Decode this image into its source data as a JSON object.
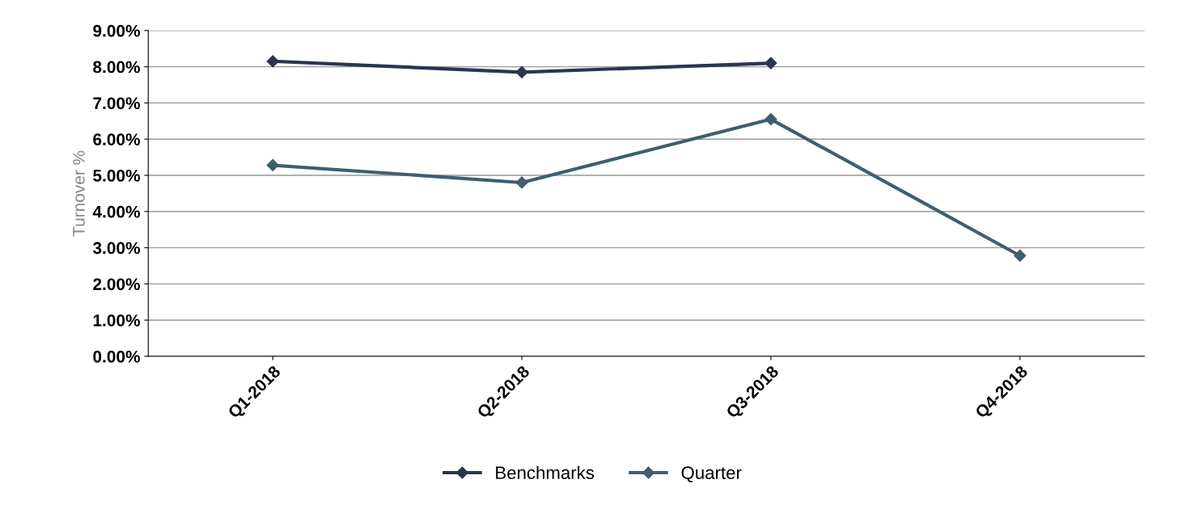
{
  "chart_data": {
    "type": "line",
    "ylabel": "Turnover %",
    "categories": [
      "Q1-2018",
      "Q2-2018",
      "Q3-2018",
      "Q4-2018"
    ],
    "series": [
      {
        "name": "Benchmarks",
        "color": "#2b3550",
        "values": [
          8.15,
          7.85,
          8.1,
          null
        ]
      },
      {
        "name": "Quarter",
        "color": "#3e5f6e",
        "values": [
          5.28,
          4.8,
          6.55,
          2.78
        ]
      }
    ],
    "ylim": [
      0,
      9
    ],
    "yticks": [
      {
        "value": 0,
        "label": "0.00%"
      },
      {
        "value": 1,
        "label": "1.00%"
      },
      {
        "value": 2,
        "label": "2.00%"
      },
      {
        "value": 3,
        "label": "3.00%"
      },
      {
        "value": 4,
        "label": "4.00%"
      },
      {
        "value": 5,
        "label": "5.00%"
      },
      {
        "value": 6,
        "label": "6.00%"
      },
      {
        "value": 7,
        "label": "7.00%"
      },
      {
        "value": 8,
        "label": "8.00%"
      },
      {
        "value": 9,
        "label": "9.00%"
      }
    ],
    "grid": "y",
    "legend": "bottom",
    "marker": "diamond",
    "line_style": "solid"
  }
}
